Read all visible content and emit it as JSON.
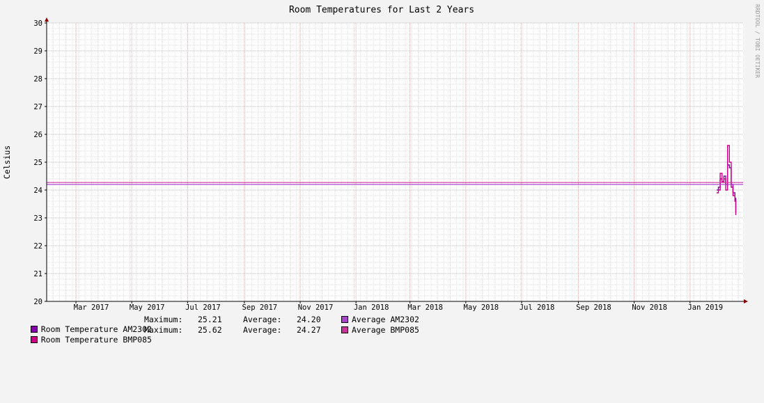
{
  "chart_data": {
    "type": "line",
    "title": "Room Temperatures for Last 2 Years",
    "ylabel": "Celsius",
    "watermark": "RRDTOOL / TOBI OETIKER",
    "ylim": [
      20,
      30
    ],
    "xlim": [
      "2017-01-28",
      "2019-02-28"
    ],
    "yticks": [
      20,
      21,
      22,
      23,
      24,
      25,
      26,
      27,
      28,
      29,
      30
    ],
    "xticks": [
      {
        "date": "2017-03-01",
        "label": "Mar 2017"
      },
      {
        "date": "2017-05-01",
        "label": "May 2017"
      },
      {
        "date": "2017-07-01",
        "label": "Jul 2017"
      },
      {
        "date": "2017-09-01",
        "label": "Sep 2017"
      },
      {
        "date": "2017-11-01",
        "label": "Nov 2017"
      },
      {
        "date": "2018-01-01",
        "label": "Jan 2018"
      },
      {
        "date": "2018-03-01",
        "label": "Mar 2018"
      },
      {
        "date": "2018-05-01",
        "label": "May 2018"
      },
      {
        "date": "2018-07-01",
        "label": "Jul 2018"
      },
      {
        "date": "2018-09-01",
        "label": "Sep 2018"
      },
      {
        "date": "2018-11-01",
        "label": "Nov 2018"
      },
      {
        "date": "2019-01-01",
        "label": "Jan 2019"
      }
    ],
    "grid": true,
    "legend_position": "bottom",
    "series": [
      {
        "name": "Room Temperature AM2302",
        "color": "#8800aa",
        "points": [
          [
            "2019-01-30",
            24.0
          ],
          [
            "2019-02-01",
            24.1
          ],
          [
            "2019-02-03",
            24.4
          ],
          [
            "2019-02-05",
            24.3
          ],
          [
            "2019-02-07",
            24.5
          ],
          [
            "2019-02-09",
            24.2
          ],
          [
            "2019-02-11",
            24.9
          ],
          [
            "2019-02-13",
            24.8
          ],
          [
            "2019-02-15",
            24.2
          ],
          [
            "2019-02-17",
            23.9
          ],
          [
            "2019-02-19",
            23.7
          ],
          [
            "2019-02-20",
            23.2
          ]
        ]
      },
      {
        "name": "Room Temperature BMP085",
        "color": "#cc0088",
        "points": [
          [
            "2019-01-30",
            23.9
          ],
          [
            "2019-02-01",
            24.0
          ],
          [
            "2019-02-03",
            24.6
          ],
          [
            "2019-02-05",
            24.3
          ],
          [
            "2019-02-07",
            24.4
          ],
          [
            "2019-02-09",
            24.0
          ],
          [
            "2019-02-11",
            25.6
          ],
          [
            "2019-02-13",
            25.0
          ],
          [
            "2019-02-15",
            24.1
          ],
          [
            "2019-02-17",
            23.8
          ],
          [
            "2019-02-19",
            23.6
          ],
          [
            "2019-02-20",
            23.1
          ]
        ]
      },
      {
        "name": "Average AM2302",
        "color": "#aa44cc",
        "constant": 24.2
      },
      {
        "name": "Average BMP085",
        "color": "#cc3399",
        "constant": 24.27
      }
    ],
    "legend": [
      {
        "swatch": "#8800aa",
        "name": "Room Temperature AM2302",
        "max_label": "Maximum:",
        "max": "25.21",
        "avg_label": "Average:",
        "avg": "24.20",
        "right_swatch": "#aa44cc",
        "right_name": "Average AM2302"
      },
      {
        "swatch": "#cc0088",
        "name": "Room Temperature BMP085",
        "max_label": "Maximum:",
        "max": "25.62",
        "avg_label": "Average:",
        "avg": "24.27",
        "right_swatch": "#cc3399",
        "right_name": "Average BMP085"
      }
    ]
  }
}
